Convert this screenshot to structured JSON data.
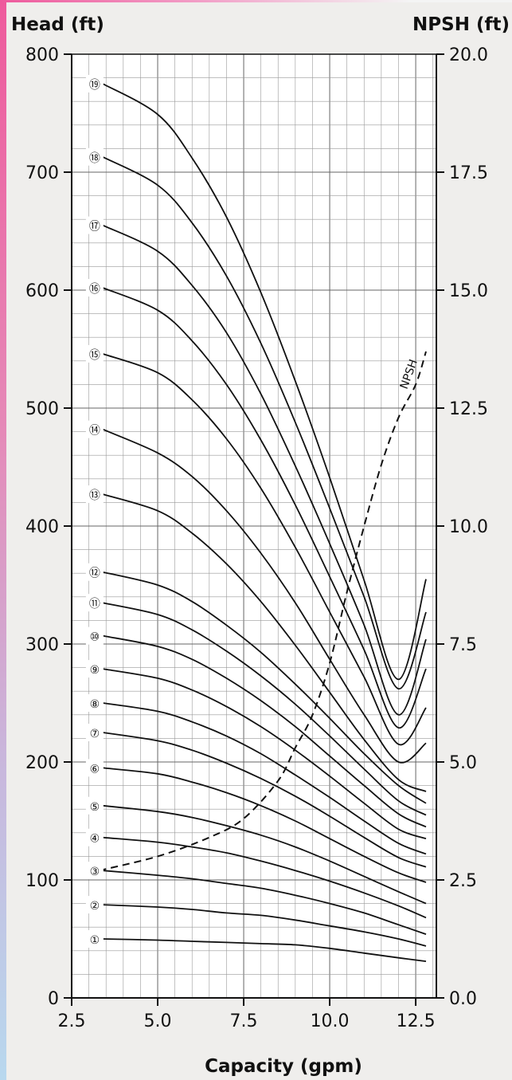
{
  "chart_data": {
    "type": "line",
    "xlabel": "Capacity (gpm)",
    "ylabel": "Head (ft)",
    "y2label": "NPSH (ft)",
    "xlim": [
      2.5,
      13.1
    ],
    "ylim": [
      0,
      800
    ],
    "y2lim": [
      0,
      20
    ],
    "xticks": [
      "2.5",
      "5.0",
      "7.5",
      "10.0",
      "12.5"
    ],
    "yticks": [
      "0",
      "100",
      "200",
      "300",
      "400",
      "500",
      "600",
      "700",
      "800"
    ],
    "y2ticks": [
      "0.0",
      "2.5",
      "5.0",
      "7.5",
      "10.0",
      "12.5",
      "15.0",
      "17.5",
      "20.0"
    ],
    "grid": true,
    "x": [
      3.4,
      5.0,
      6.0,
      7.0,
      8.0,
      9.0,
      10.0,
      11.0,
      12.0,
      12.8
    ],
    "series": [
      {
        "name": "①",
        "values": [
          50,
          49,
          48,
          47,
          46,
          45,
          42,
          38,
          34,
          31
        ]
      },
      {
        "name": "②",
        "values": [
          79,
          77,
          75,
          72,
          70,
          66,
          61,
          56,
          50,
          44
        ]
      },
      {
        "name": "③",
        "values": [
          108,
          104,
          101,
          97,
          93,
          87,
          80,
          72,
          62,
          54
        ]
      },
      {
        "name": "④",
        "values": [
          136,
          132,
          128,
          123,
          116,
          108,
          99,
          89,
          78,
          68
        ]
      },
      {
        "name": "⑤",
        "values": [
          163,
          158,
          153,
          146,
          138,
          128,
          116,
          103,
          90,
          80
        ]
      },
      {
        "name": "⑥",
        "values": [
          195,
          190,
          183,
          174,
          163,
          150,
          135,
          120,
          106,
          98
        ]
      },
      {
        "name": "⑦",
        "values": [
          225,
          218,
          210,
          199,
          186,
          171,
          154,
          136,
          119,
          111
        ]
      },
      {
        "name": "⑧",
        "values": [
          250,
          243,
          234,
          222,
          207,
          189,
          170,
          150,
          131,
          122
        ]
      },
      {
        "name": "⑨",
        "values": [
          279,
          271,
          261,
          247,
          230,
          210,
          188,
          165,
          143,
          135
        ]
      },
      {
        "name": "⑩",
        "values": [
          307,
          298,
          287,
          271,
          252,
          230,
          205,
          180,
          156,
          145
        ]
      },
      {
        "name": "⑪",
        "values": [
          335,
          325,
          312,
          294,
          273,
          249,
          222,
          194,
          167,
          155
        ]
      },
      {
        "name": "⑫",
        "values": [
          361,
          350,
          336,
          316,
          293,
          266,
          237,
          207,
          180,
          165
        ]
      },
      {
        "name": "⑬",
        "values": [
          427,
          413,
          394,
          368,
          336,
          299,
          259,
          219,
          185,
          175
        ]
      },
      {
        "name": "⑭",
        "values": [
          482,
          462,
          442,
          413,
          377,
          335,
          287,
          240,
          200,
          216
        ]
      },
      {
        "name": "⑮",
        "values": [
          546,
          530,
          507,
          474,
          432,
          382,
          327,
          272,
          215,
          246
        ]
      },
      {
        "name": "⑯",
        "values": [
          602,
          583,
          557,
          520,
          473,
          418,
          357,
          295,
          229,
          279
        ]
      },
      {
        "name": "⑰",
        "values": [
          655,
          633,
          604,
          564,
          512,
          451,
          385,
          316,
          240,
          304
        ]
      },
      {
        "name": "⑱",
        "values": [
          713,
          689,
          657,
          612,
          555,
          488,
          415,
          340,
          262,
          327
        ]
      },
      {
        "name": "⑲",
        "values": [
          775,
          749,
          712,
          662,
          598,
          523,
          441,
          354,
          270,
          355
        ]
      },
      {
        "name": "NPSH",
        "axis": "right",
        "dashed": true,
        "x": [
          3.3,
          5.0,
          6.5,
          7.5,
          8.5,
          9.0,
          9.5,
          10.0,
          10.5,
          11.0,
          11.5,
          12.0,
          12.5,
          12.8
        ],
        "values": [
          2.7,
          3.0,
          3.4,
          3.8,
          4.6,
          5.3,
          6.0,
          7.1,
          8.6,
          10.0,
          11.3,
          12.3,
          13.0,
          13.7
        ]
      }
    ]
  }
}
